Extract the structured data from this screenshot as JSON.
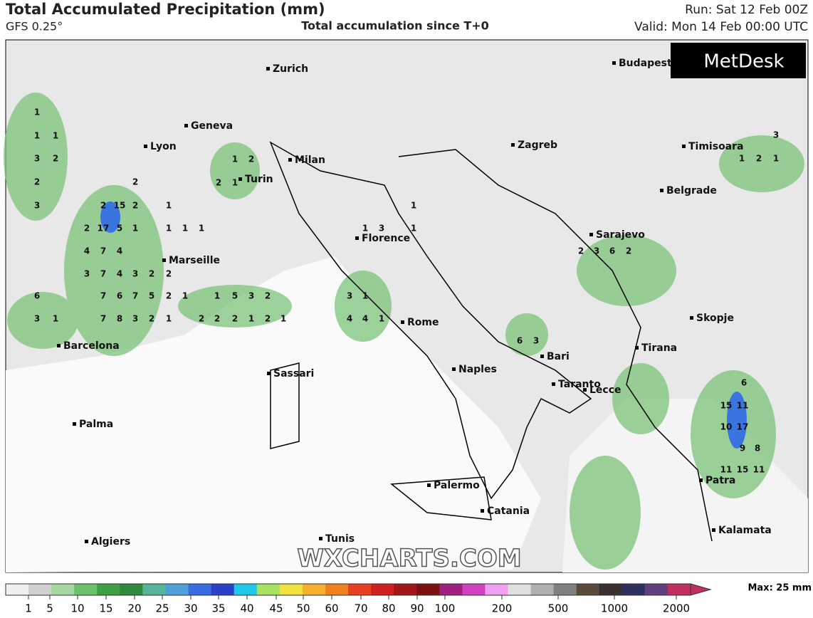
{
  "header": {
    "title": "Total Accumulated Precipitation (mm)",
    "model": "GFS 0.25°",
    "subtitle": "Total accumulation since T+0",
    "run": "Run: Sat 12 Feb 00Z",
    "valid": "Valid: Mon 14 Feb 00:00 UTC"
  },
  "logo": "MetDesk",
  "watermark": "WXCHARTS.COM",
  "cities": [
    "Zurich",
    "Geneva",
    "Lyon",
    "Milan",
    "Turin",
    "Marseille",
    "Florence",
    "Rome",
    "Barcelona",
    "Sassari",
    "Naples",
    "Bari",
    "Taranto",
    "Lecce",
    "Palma",
    "Palermo",
    "Catania",
    "Algiers",
    "Tunis",
    "Zagreb",
    "Budapest",
    "Timisoara",
    "Belgrade",
    "Sarajevo",
    "Skopje",
    "Tirana",
    "Patra",
    "Kalamata"
  ],
  "precip_labels": [
    1,
    1,
    1,
    3,
    2,
    2,
    3,
    2,
    2,
    15,
    2,
    1,
    2,
    17,
    5,
    1,
    1,
    1,
    1,
    4,
    7,
    4,
    3,
    7,
    4,
    3,
    2,
    2,
    6,
    7,
    6,
    7,
    5,
    2,
    1,
    1,
    5,
    3,
    2,
    3,
    1,
    7,
    8,
    3,
    2,
    1,
    2,
    2,
    2,
    1,
    2,
    1,
    1,
    2,
    2,
    1,
    1,
    3,
    1,
    1,
    3,
    1,
    4,
    4,
    1,
    6,
    3,
    15,
    11,
    10,
    17,
    9,
    8,
    11,
    15,
    11,
    6,
    6,
    2,
    3,
    2,
    1,
    2,
    3,
    1
  ],
  "legend": {
    "ticks": [
      1,
      5,
      10,
      15,
      20,
      25,
      30,
      35,
      40,
      45,
      50,
      60,
      70,
      80,
      90,
      100,
      200,
      500,
      1000,
      2000
    ],
    "max_label": "Max: 25 mm"
  }
}
